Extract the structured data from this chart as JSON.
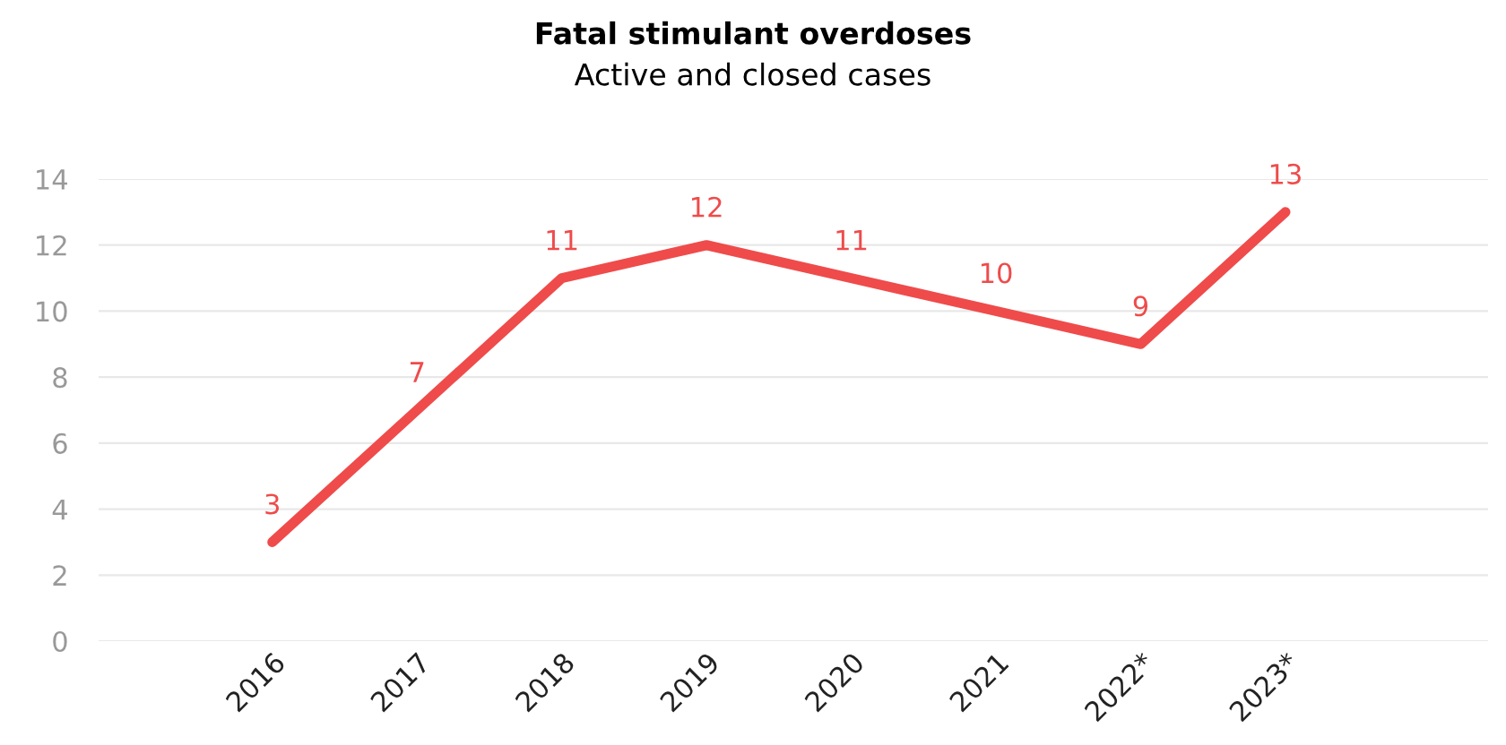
{
  "chart_data": {
    "type": "line",
    "title": "Fatal stimulant overdoses",
    "subtitle": "Active and closed cases",
    "categories": [
      "2016",
      "2017",
      "2018",
      "2019",
      "2020",
      "2021",
      "2022*",
      "2023*"
    ],
    "series": [
      {
        "color": "#ef4b4b",
        "values": [
          3,
          7,
          11,
          12,
          11,
          10,
          9,
          13
        ]
      }
    ],
    "ylim": [
      0,
      14
    ],
    "yticks": [
      0,
      2,
      4,
      6,
      8,
      10,
      12,
      14
    ],
    "grid": "y",
    "data_labels": true,
    "marker": "none",
    "line_style": "solid",
    "legend": false
  }
}
